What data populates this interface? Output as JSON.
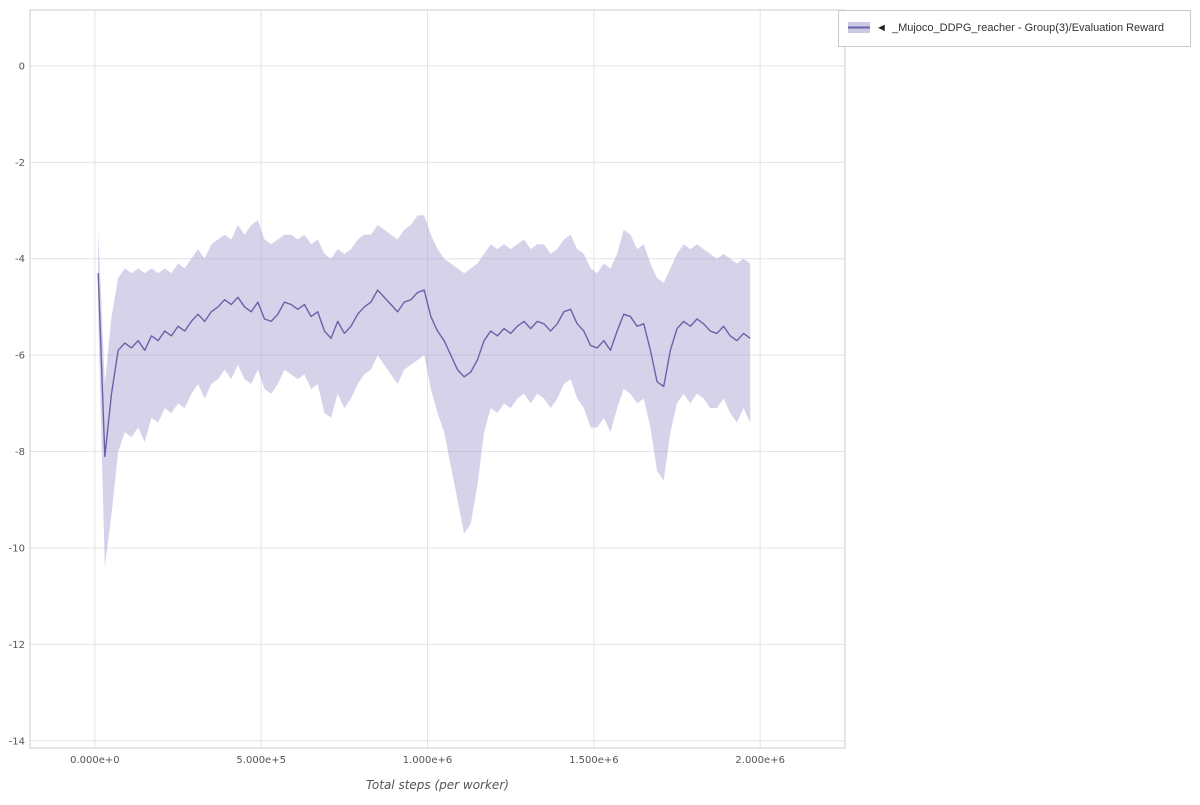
{
  "legend": {
    "collapse_icon": "◄",
    "label": "_Mujoco_DDPG_reacher - Group(3)/Evaluation Reward"
  },
  "chart_data": {
    "type": "line",
    "title": "",
    "xlabel": "Total steps (per worker)",
    "ylabel": "",
    "grid": true,
    "legend_position": "top-right",
    "xlim": [
      -195000,
      2255000
    ],
    "ylim": [
      -14.15,
      1.16
    ],
    "x_ticks": {
      "values": [
        0,
        500000,
        1000000,
        1500000,
        2000000
      ],
      "labels": [
        "0.000e+0",
        "5.000e+5",
        "1.000e+6",
        "1.500e+6",
        "2.000e+6"
      ]
    },
    "y_ticks": {
      "values": [
        0,
        -2,
        -4,
        -6,
        -8,
        -10,
        -12,
        -14
      ],
      "labels": [
        "0",
        "-2",
        "-4",
        "-6",
        "-8",
        "-10",
        "-12",
        "-14"
      ]
    },
    "colors": {
      "line": "#6a62a8",
      "band": "#a39cd0",
      "band_opacity": 0.45,
      "grid": "#e4e4e9",
      "border": "#cccccc",
      "axis_text": "#555555"
    },
    "series": [
      {
        "name": "_Mujoco_DDPG_reacher - Group(3)/Evaluation Reward",
        "x": [
          10000,
          30000,
          50000,
          70000,
          90000,
          110000,
          130000,
          150000,
          170000,
          190000,
          210000,
          230000,
          250000,
          270000,
          290000,
          310000,
          330000,
          350000,
          370000,
          390000,
          410000,
          430000,
          450000,
          470000,
          490000,
          510000,
          530000,
          550000,
          570000,
          590000,
          610000,
          630000,
          650000,
          670000,
          690000,
          710000,
          730000,
          750000,
          770000,
          790000,
          810000,
          830000,
          850000,
          870000,
          890000,
          910000,
          930000,
          950000,
          970000,
          990000,
          1010000,
          1030000,
          1050000,
          1070000,
          1090000,
          1110000,
          1130000,
          1150000,
          1170000,
          1190000,
          1210000,
          1230000,
          1250000,
          1270000,
          1290000,
          1310000,
          1330000,
          1350000,
          1370000,
          1390000,
          1410000,
          1430000,
          1450000,
          1470000,
          1490000,
          1510000,
          1530000,
          1550000,
          1570000,
          1590000,
          1610000,
          1630000,
          1650000,
          1670000,
          1690000,
          1710000,
          1730000,
          1750000,
          1770000,
          1790000,
          1810000,
          1830000,
          1850000,
          1870000,
          1890000,
          1910000,
          1930000,
          1950000,
          1970000
        ],
        "mean": [
          -4.3,
          -8.1,
          -6.8,
          -5.9,
          -5.75,
          -5.85,
          -5.7,
          -5.9,
          -5.6,
          -5.7,
          -5.5,
          -5.6,
          -5.4,
          -5.5,
          -5.3,
          -5.15,
          -5.3,
          -5.1,
          -5.0,
          -4.85,
          -4.95,
          -4.8,
          -5.0,
          -5.1,
          -4.9,
          -5.25,
          -5.3,
          -5.15,
          -4.9,
          -4.95,
          -5.05,
          -4.95,
          -5.2,
          -5.1,
          -5.5,
          -5.65,
          -5.3,
          -5.55,
          -5.4,
          -5.15,
          -5.0,
          -4.9,
          -4.65,
          -4.8,
          -4.95,
          -5.1,
          -4.9,
          -4.85,
          -4.7,
          -4.65,
          -5.2,
          -5.5,
          -5.7,
          -6.0,
          -6.3,
          -6.45,
          -6.35,
          -6.1,
          -5.7,
          -5.5,
          -5.6,
          -5.45,
          -5.55,
          -5.4,
          -5.3,
          -5.45,
          -5.3,
          -5.35,
          -5.5,
          -5.35,
          -5.1,
          -5.05,
          -5.35,
          -5.5,
          -5.8,
          -5.85,
          -5.7,
          -5.9,
          -5.5,
          -5.15,
          -5.2,
          -5.4,
          -5.35,
          -5.9,
          -6.55,
          -6.65,
          -5.9,
          -5.45,
          -5.3,
          -5.4,
          -5.25,
          -5.35,
          -5.5,
          -5.55,
          -5.4,
          -5.6,
          -5.7,
          -5.55,
          -5.65
        ],
        "band_high": [
          -3.4,
          -6.6,
          -5.2,
          -4.4,
          -4.2,
          -4.3,
          -4.2,
          -4.3,
          -4.2,
          -4.3,
          -4.2,
          -4.3,
          -4.1,
          -4.2,
          -4.0,
          -3.8,
          -4.0,
          -3.7,
          -3.6,
          -3.5,
          -3.6,
          -3.3,
          -3.5,
          -3.3,
          -3.2,
          -3.6,
          -3.7,
          -3.6,
          -3.5,
          -3.5,
          -3.6,
          -3.5,
          -3.7,
          -3.6,
          -3.9,
          -4.0,
          -3.8,
          -3.9,
          -3.8,
          -3.6,
          -3.5,
          -3.5,
          -3.3,
          -3.4,
          -3.5,
          -3.6,
          -3.4,
          -3.3,
          -3.1,
          -3.1,
          -3.5,
          -3.8,
          -4.0,
          -4.1,
          -4.2,
          -4.3,
          -4.2,
          -4.1,
          -3.9,
          -3.7,
          -3.8,
          -3.7,
          -3.8,
          -3.7,
          -3.6,
          -3.8,
          -3.7,
          -3.7,
          -3.9,
          -3.8,
          -3.6,
          -3.5,
          -3.8,
          -3.9,
          -4.2,
          -4.3,
          -4.1,
          -4.2,
          -3.9,
          -3.4,
          -3.5,
          -3.8,
          -3.7,
          -4.1,
          -4.4,
          -4.5,
          -4.2,
          -3.9,
          -3.7,
          -3.8,
          -3.7,
          -3.8,
          -3.9,
          -4.0,
          -3.9,
          -4.0,
          -4.1,
          -4.0,
          -4.1
        ],
        "band_low": [
          -5.2,
          -10.4,
          -9.3,
          -8.0,
          -7.6,
          -7.7,
          -7.5,
          -7.8,
          -7.3,
          -7.4,
          -7.1,
          -7.2,
          -7.0,
          -7.1,
          -6.8,
          -6.6,
          -6.9,
          -6.6,
          -6.5,
          -6.3,
          -6.5,
          -6.2,
          -6.5,
          -6.6,
          -6.3,
          -6.7,
          -6.8,
          -6.6,
          -6.3,
          -6.4,
          -6.5,
          -6.4,
          -6.7,
          -6.6,
          -7.2,
          -7.3,
          -6.8,
          -7.1,
          -6.9,
          -6.6,
          -6.4,
          -6.3,
          -6.0,
          -6.2,
          -6.4,
          -6.6,
          -6.3,
          -6.2,
          -6.1,
          -6.0,
          -6.7,
          -7.2,
          -7.6,
          -8.3,
          -9.0,
          -9.7,
          -9.5,
          -8.7,
          -7.6,
          -7.1,
          -7.2,
          -7.0,
          -7.1,
          -6.9,
          -6.8,
          -7.0,
          -6.8,
          -6.9,
          -7.1,
          -6.9,
          -6.6,
          -6.5,
          -6.9,
          -7.1,
          -7.5,
          -7.5,
          -7.3,
          -7.6,
          -7.1,
          -6.7,
          -6.8,
          -7.0,
          -6.9,
          -7.5,
          -8.4,
          -8.6,
          -7.6,
          -7.0,
          -6.8,
          -7.0,
          -6.8,
          -6.9,
          -7.1,
          -7.1,
          -6.9,
          -7.2,
          -7.4,
          -7.1,
          -7.4
        ]
      }
    ]
  }
}
